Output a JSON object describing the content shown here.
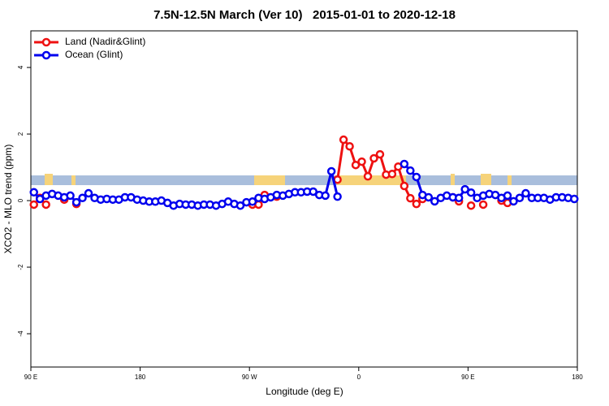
{
  "chart_data": {
    "type": "line",
    "title": "7.5N-12.5N March (Ver 10)   2015-01-01 to 2020-12-18",
    "x_label": "Longitude (deg E)",
    "y_label": "XCO2 - MLO trend (ppm)",
    "x": [
      92.5,
      97.5,
      102.5,
      107.5,
      112.5,
      117.5,
      122.5,
      127.5,
      132.5,
      137.5,
      142.5,
      147.5,
      152.5,
      157.5,
      162.5,
      167.5,
      172.5,
      177.5,
      182.5,
      187.5,
      192.5,
      197.5,
      202.5,
      207.5,
      212.5,
      217.5,
      222.5,
      227.5,
      232.5,
      237.5,
      242.5,
      247.5,
      252.5,
      257.5,
      262.5,
      267.5,
      272.5,
      277.5,
      282.5,
      287.5,
      292.5,
      297.5,
      302.5,
      307.5,
      312.5,
      317.5,
      322.5,
      327.5,
      332.5,
      337.5,
      342.5,
      347.5,
      352.5,
      357.5,
      362.5,
      367.5,
      372.5,
      377.5,
      382.5,
      387.5,
      392.5,
      397.5,
      402.5,
      407.5,
      412.5,
      417.5,
      422.5,
      427.5,
      432.5,
      437.5,
      442.5,
      447.5,
      452.5,
      457.5,
      462.5,
      467.5,
      472.5,
      477.5,
      482.5,
      487.5,
      492.5,
      497.5,
      502.5,
      507.5,
      512.5,
      517.5,
      522.5,
      527.5,
      532.5,
      537.5
    ],
    "series": [
      {
        "name": "Land (Nadir&Glint)",
        "color": "#ee1111",
        "values": [
          -0.12,
          0.08,
          -0.12,
          null,
          null,
          0.03,
          null,
          -0.1,
          null,
          null,
          null,
          null,
          null,
          null,
          null,
          null,
          null,
          null,
          null,
          null,
          null,
          null,
          null,
          null,
          null,
          null,
          null,
          null,
          null,
          null,
          null,
          null,
          null,
          null,
          null,
          null,
          -0.12,
          -0.12,
          0.17,
          null,
          0.12,
          null,
          null,
          null,
          null,
          null,
          null,
          null,
          null,
          null,
          0.63,
          1.83,
          1.63,
          1.07,
          1.17,
          0.73,
          1.27,
          1.39,
          0.78,
          0.8,
          1.02,
          0.44,
          0.07,
          -0.1,
          0.05,
          null,
          null,
          null,
          null,
          0.1,
          -0.02,
          null,
          -0.15,
          null,
          -0.12,
          null,
          null,
          0.0,
          -0.07,
          null,
          null,
          null,
          null,
          null,
          null,
          null,
          null,
          null,
          null,
          null
        ]
      },
      {
        "name": "Ocean (Glint)",
        "color": "#0000ee",
        "values": [
          0.25,
          0.05,
          0.15,
          0.2,
          0.15,
          0.1,
          0.15,
          -0.05,
          0.08,
          0.22,
          0.08,
          0.03,
          0.05,
          0.03,
          0.03,
          0.1,
          0.1,
          0.03,
          0,
          -0.03,
          -0.03,
          0,
          -0.07,
          -0.15,
          -0.1,
          -0.12,
          -0.12,
          -0.15,
          -0.12,
          -0.12,
          -0.15,
          -0.1,
          -0.03,
          -0.1,
          -0.15,
          -0.05,
          -0.03,
          0.08,
          0.05,
          0.1,
          0.17,
          0.15,
          0.2,
          0.25,
          0.25,
          0.27,
          0.27,
          0.17,
          0.15,
          0.88,
          0.12,
          null,
          null,
          null,
          null,
          null,
          null,
          null,
          null,
          null,
          null,
          1.1,
          0.9,
          0.71,
          0.17,
          0.1,
          -0.02,
          0.08,
          0.15,
          0.1,
          0.08,
          0.34,
          0.24,
          0.08,
          0.15,
          0.2,
          0.17,
          0.08,
          0.15,
          -0.02,
          0.08,
          0.22,
          0.08,
          0.08,
          0.08,
          0.03,
          0.1,
          0.1,
          0.08,
          0.05
        ]
      }
    ],
    "xlim": [
      90,
      540
    ],
    "xticks": [
      {
        "value": 90,
        "label": "90 E"
      },
      180,
      {
        "value": 270,
        "label": "90 W"
      },
      {
        "value": 360,
        "label": "0"
      },
      {
        "value": 450,
        "label": "90 E"
      },
      {
        "value": 540,
        "label": "180"
      }
    ],
    "ylim": [
      -5,
      5.1
    ],
    "yticks": [
      -4,
      -2,
      0,
      2,
      4
    ],
    "legend": "topleft"
  }
}
